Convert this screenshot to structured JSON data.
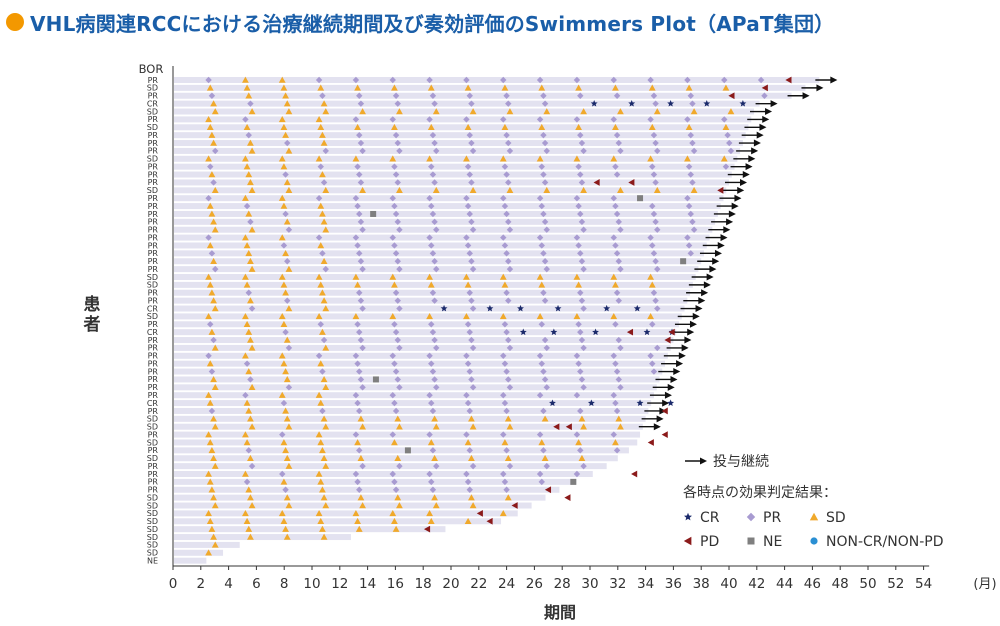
{
  "title": "VHL病関連RCCにおける治療継続期間及び奏効評価のSwimmers Plot（APaT集団）",
  "chart_data": {
    "type": "swimmer",
    "xlabel": "期間",
    "ylabel": "患者",
    "x_unit": "(月)",
    "bor_header": "BOR",
    "xlim": [
      0,
      56
    ],
    "x_ticks": [
      0,
      2,
      4,
      6,
      8,
      10,
      12,
      14,
      16,
      18,
      20,
      22,
      24,
      26,
      28,
      30,
      32,
      34,
      36,
      38,
      40,
      42,
      44,
      46,
      48,
      50,
      52,
      54
    ],
    "bor": [
      "PR",
      "SD",
      "PR",
      "CR",
      "SD",
      "PR",
      "SD",
      "PR",
      "PR",
      "PR",
      "SD",
      "PR",
      "PR",
      "PR",
      "SD",
      "PR",
      "PR",
      "PR",
      "PR",
      "PR",
      "PR",
      "PR",
      "PR",
      "PR",
      "PR",
      "SD",
      "SD",
      "PR",
      "PR",
      "CR",
      "SD",
      "PR",
      "CR",
      "PR",
      "PR",
      "PR",
      "PR",
      "PR",
      "PR",
      "PR",
      "PR",
      "CR",
      "PR",
      "SD",
      "SD",
      "PR",
      "SD",
      "PR",
      "SD",
      "PR",
      "PR",
      "PR",
      "PR",
      "SD",
      "SD",
      "SD",
      "SD",
      "SD",
      "SD",
      "SD",
      "SD",
      "NE"
    ],
    "durations": [
      46.5,
      45.5,
      44.5,
      42.2,
      41.8,
      41.6,
      41.4,
      41.2,
      41.0,
      40.8,
      40.6,
      40.4,
      40.2,
      40.0,
      39.8,
      39.6,
      39.4,
      39.2,
      39.0,
      38.8,
      38.6,
      38.4,
      38.2,
      38.0,
      37.8,
      37.6,
      37.4,
      37.2,
      37.0,
      36.8,
      36.6,
      36.4,
      36.2,
      36.0,
      35.8,
      35.6,
      35.4,
      35.2,
      35.0,
      34.8,
      34.6,
      34.4,
      34.2,
      34.0,
      33.8,
      33.6,
      33.4,
      32.8,
      32.0,
      31.2,
      30.2,
      29.0,
      27.8,
      26.8,
      25.8,
      24.8,
      23.6,
      19.6,
      12.8,
      4.8,
      3.6,
      2.4
    ],
    "ongoing": [
      true,
      true,
      true,
      true,
      true,
      true,
      true,
      true,
      true,
      true,
      true,
      true,
      true,
      true,
      true,
      true,
      true,
      true,
      true,
      true,
      true,
      true,
      true,
      true,
      true,
      true,
      true,
      true,
      true,
      true,
      true,
      true,
      true,
      true,
      true,
      true,
      true,
      true,
      true,
      true,
      true,
      true,
      true,
      true,
      true,
      false,
      false,
      false,
      false,
      false,
      false,
      false,
      false,
      false,
      false,
      false,
      false,
      false,
      false,
      false,
      false,
      false
    ],
    "cr_events": [
      [
        3,
        30.3
      ],
      [
        3,
        33.0
      ],
      [
        3,
        35.8
      ],
      [
        3,
        38.4
      ],
      [
        3,
        41.0
      ],
      [
        29,
        19.5
      ],
      [
        29,
        22.8
      ],
      [
        29,
        25.0
      ],
      [
        29,
        27.7
      ],
      [
        29,
        31.2
      ],
      [
        29,
        33.4
      ],
      [
        32,
        25.2
      ],
      [
        32,
        27.4
      ],
      [
        32,
        30.4
      ],
      [
        32,
        34.1
      ],
      [
        32,
        35.9
      ],
      [
        41,
        27.3
      ],
      [
        41,
        30.1
      ],
      [
        41,
        33.6
      ],
      [
        41,
        35.8
      ]
    ],
    "pd_events": [
      [
        0,
        44.3
      ],
      [
        1,
        42.6
      ],
      [
        2,
        40.2
      ],
      [
        13,
        30.5
      ],
      [
        13,
        33.0
      ],
      [
        14,
        39.4
      ],
      [
        32,
        32.9
      ],
      [
        32,
        35.9
      ],
      [
        33,
        35.6
      ],
      [
        42,
        35.4
      ],
      [
        44,
        27.6
      ],
      [
        44,
        28.5
      ],
      [
        45,
        35.4
      ],
      [
        46,
        34.4
      ],
      [
        50,
        33.2
      ],
      [
        52,
        27.0
      ],
      [
        53,
        28.4
      ],
      [
        54,
        24.6
      ],
      [
        55,
        22.1
      ],
      [
        56,
        22.8
      ],
      [
        57,
        18.3
      ]
    ],
    "ne_events": [
      [
        15,
        33.6
      ],
      [
        17,
        14.4
      ],
      [
        23,
        36.7
      ],
      [
        38,
        14.6
      ],
      [
        47,
        16.9
      ],
      [
        51,
        28.8
      ]
    ],
    "legend": {
      "ongoing_label": "投与継続",
      "result_heading": "各時点の効果判定結果：",
      "items": [
        {
          "symbol": "star",
          "label": "CR",
          "color": "#1b2a6b"
        },
        {
          "symbol": "diamond",
          "label": "PR",
          "color": "#a89bd1"
        },
        {
          "symbol": "triangle",
          "label": "SD",
          "color": "#f0a92b"
        },
        {
          "symbol": "pd-triangle",
          "label": "PD",
          "color": "#8b1a1a"
        },
        {
          "symbol": "square",
          "label": "NE",
          "color": "#7f7f7f"
        },
        {
          "symbol": "circle",
          "label": "NON-CR/NON-PD",
          "color": "#2a8fd3"
        }
      ]
    },
    "colors": {
      "bar": "#e3e2f0",
      "cr": "#1b2a6b",
      "pr": "#a89bd1",
      "sd": "#f0a92b",
      "pd": "#8b1a1a",
      "ne": "#7f7f7f",
      "arrow": "#111111"
    }
  }
}
